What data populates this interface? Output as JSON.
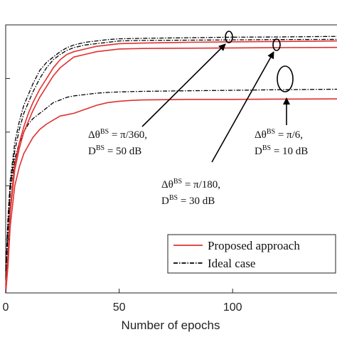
{
  "chart_data": {
    "type": "line",
    "xlabel": "Number of epochs",
    "ylabel": "",
    "xlim": [
      0,
      146
    ],
    "ylim": [
      0,
      1.0
    ],
    "xticks": [
      0,
      50,
      100
    ],
    "xtick_labels": [
      "0",
      "50",
      "100"
    ],
    "yticks": [
      0.2,
      0.4,
      0.6,
      0.8
    ],
    "grid": false,
    "legend_position": "bottom-right",
    "legend": [
      {
        "label": "Proposed approach",
        "color": "#e03030",
        "dash": "solid"
      },
      {
        "label": "Ideal case",
        "color": "#000000",
        "dash": "dashdot"
      }
    ],
    "series": [
      {
        "group": "pi/360, 50 dB",
        "kind": "proposed",
        "color": "#e03030",
        "x": [
          0,
          1,
          2,
          4,
          6,
          8,
          10,
          12,
          15,
          18,
          21,
          24,
          27,
          30,
          35,
          40,
          45,
          50,
          60,
          80,
          100,
          120,
          146
        ],
        "y": [
          0.02,
          0.12,
          0.32,
          0.48,
          0.56,
          0.62,
          0.67,
          0.71,
          0.76,
          0.8,
          0.84,
          0.87,
          0.89,
          0.9,
          0.91,
          0.92,
          0.925,
          0.93,
          0.932,
          0.935,
          0.937,
          0.938,
          0.94
        ]
      },
      {
        "group": "pi/360, 50 dB",
        "kind": "ideal",
        "color": "#000000",
        "x": [
          0,
          1,
          2,
          4,
          6,
          8,
          10,
          12,
          15,
          18,
          21,
          24,
          27,
          30,
          35,
          40,
          45,
          50,
          60,
          80,
          100,
          120,
          146
        ],
        "y": [
          0.08,
          0.28,
          0.42,
          0.56,
          0.64,
          0.7,
          0.74,
          0.78,
          0.83,
          0.86,
          0.88,
          0.9,
          0.915,
          0.925,
          0.935,
          0.94,
          0.945,
          0.948,
          0.95,
          0.952,
          0.954,
          0.955,
          0.957
        ]
      },
      {
        "group": "pi/180, 30 dB",
        "kind": "proposed",
        "color": "#e03030",
        "x": [
          0,
          1,
          2,
          4,
          6,
          8,
          10,
          12,
          15,
          18,
          21,
          24,
          27,
          30,
          35,
          40,
          45,
          50,
          60,
          80,
          100,
          120,
          146
        ],
        "y": [
          0.03,
          0.14,
          0.3,
          0.46,
          0.54,
          0.6,
          0.64,
          0.68,
          0.73,
          0.77,
          0.81,
          0.84,
          0.86,
          0.88,
          0.89,
          0.9,
          0.905,
          0.91,
          0.912,
          0.913,
          0.914,
          0.915,
          0.916
        ]
      },
      {
        "group": "pi/180, 30 dB",
        "kind": "ideal",
        "color": "#000000",
        "x": [
          0,
          1,
          2,
          4,
          6,
          8,
          10,
          12,
          15,
          18,
          21,
          24,
          27,
          30,
          35,
          40,
          45,
          50,
          60,
          80,
          100,
          120,
          146
        ],
        "y": [
          0.06,
          0.25,
          0.4,
          0.53,
          0.61,
          0.67,
          0.71,
          0.75,
          0.8,
          0.84,
          0.87,
          0.89,
          0.905,
          0.915,
          0.925,
          0.93,
          0.935,
          0.94,
          0.942,
          0.943,
          0.944,
          0.945,
          0.946
        ]
      },
      {
        "group": "pi/6, 10 dB",
        "kind": "proposed",
        "color": "#e03030",
        "x": [
          0,
          1,
          2,
          4,
          6,
          8,
          10,
          12,
          15,
          18,
          21,
          24,
          27,
          30,
          35,
          40,
          45,
          50,
          55,
          60,
          80,
          100,
          120,
          146
        ],
        "y": [
          0.0,
          0.1,
          0.25,
          0.4,
          0.47,
          0.52,
          0.55,
          0.58,
          0.61,
          0.63,
          0.645,
          0.66,
          0.665,
          0.67,
          0.685,
          0.7,
          0.71,
          0.715,
          0.718,
          0.72,
          0.722,
          0.722,
          0.723,
          0.724
        ]
      },
      {
        "group": "pi/6, 10 dB",
        "kind": "ideal",
        "color": "#000000",
        "x": [
          0,
          1,
          2,
          4,
          6,
          8,
          10,
          12,
          15,
          18,
          21,
          24,
          27,
          30,
          35,
          40,
          45,
          50,
          60,
          80,
          100,
          120,
          146
        ],
        "y": [
          0.05,
          0.22,
          0.38,
          0.5,
          0.56,
          0.6,
          0.63,
          0.65,
          0.67,
          0.69,
          0.71,
          0.72,
          0.73,
          0.735,
          0.74,
          0.745,
          0.748,
          0.75,
          0.752,
          0.754,
          0.756,
          0.758,
          0.76
        ]
      }
    ],
    "annotations": [
      {
        "id": "a1",
        "prefix": "Δθ",
        "sup": "BS",
        "rhs": " = π/360,",
        "prefix2": "D",
        "sup2": "BS",
        "rhs2": " = 50 dB"
      },
      {
        "id": "a2",
        "prefix": "Δθ",
        "sup": "BS",
        "rhs": " = π/180,",
        "prefix2": "D",
        "sup2": "BS",
        "rhs2": " = 30 dB"
      },
      {
        "id": "a3",
        "prefix": "Δθ",
        "sup": "BS",
        "rhs": " = π/6,",
        "prefix2": "D",
        "sup2": "BS",
        "rhs2": " = 10 dB"
      }
    ]
  }
}
